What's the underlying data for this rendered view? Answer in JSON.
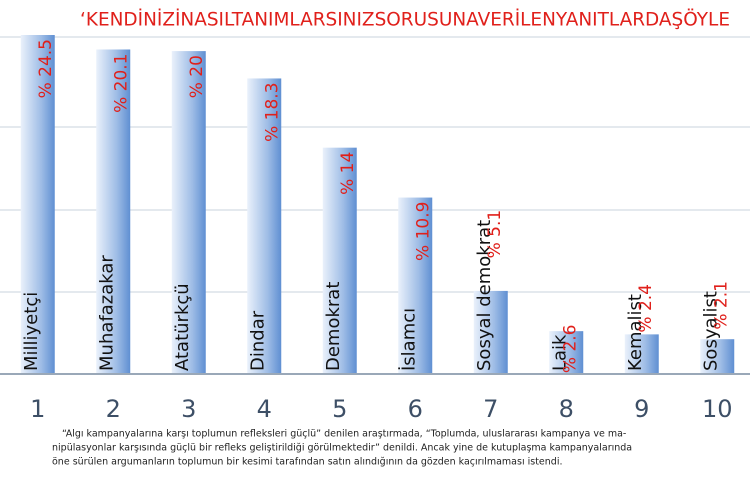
{
  "chart_data": {
    "type": "bar",
    "title": "‘KENDİNİZİNASILTANIMLARSINIZSORUSUNAVERİLENYANITLARDAŞÖYLE",
    "categories": [
      "1",
      "2",
      "3",
      "4",
      "5",
      "6",
      "7",
      "8",
      "9",
      "10"
    ],
    "bar_names": [
      "Milliyetçi",
      "Muhafazakar",
      "Atatürkçü",
      "Dindar",
      "Demokrat",
      "İslamcı",
      "Sosyal demokrat",
      "Laik",
      "Kemalist",
      "Sosyalist"
    ],
    "values": [
      24.5,
      20.1,
      20,
      18.3,
      14,
      10.9,
      5.1,
      2.6,
      2.4,
      2.1
    ],
    "value_labels": [
      "% 24.5",
      "% 20.1",
      "% 20",
      "% 18.3",
      "% 14",
      "% 10.9",
      "% 5.1",
      "% 2.6",
      "% 2.4",
      "% 2.1"
    ],
    "color": "#7ba3dc",
    "ylim": [
      0,
      21
    ],
    "footnote": [
      "“Algı kampanyalarına karşı toplumun refleksleri güçlü” denilen araştırmada, “Toplumda, uluslararası kampanya ve ma-",
      "nipülasyonlar karşısında güçlü bir refleks geliştirildiği görülmektedir” denildi. Ancak yine de kutuplaşma kampanyalarında",
      "öne sürülen argumanların toplumun bir kesimi tarafından satın alındığının da gözden kaçırılmaması istendi."
    ]
  }
}
